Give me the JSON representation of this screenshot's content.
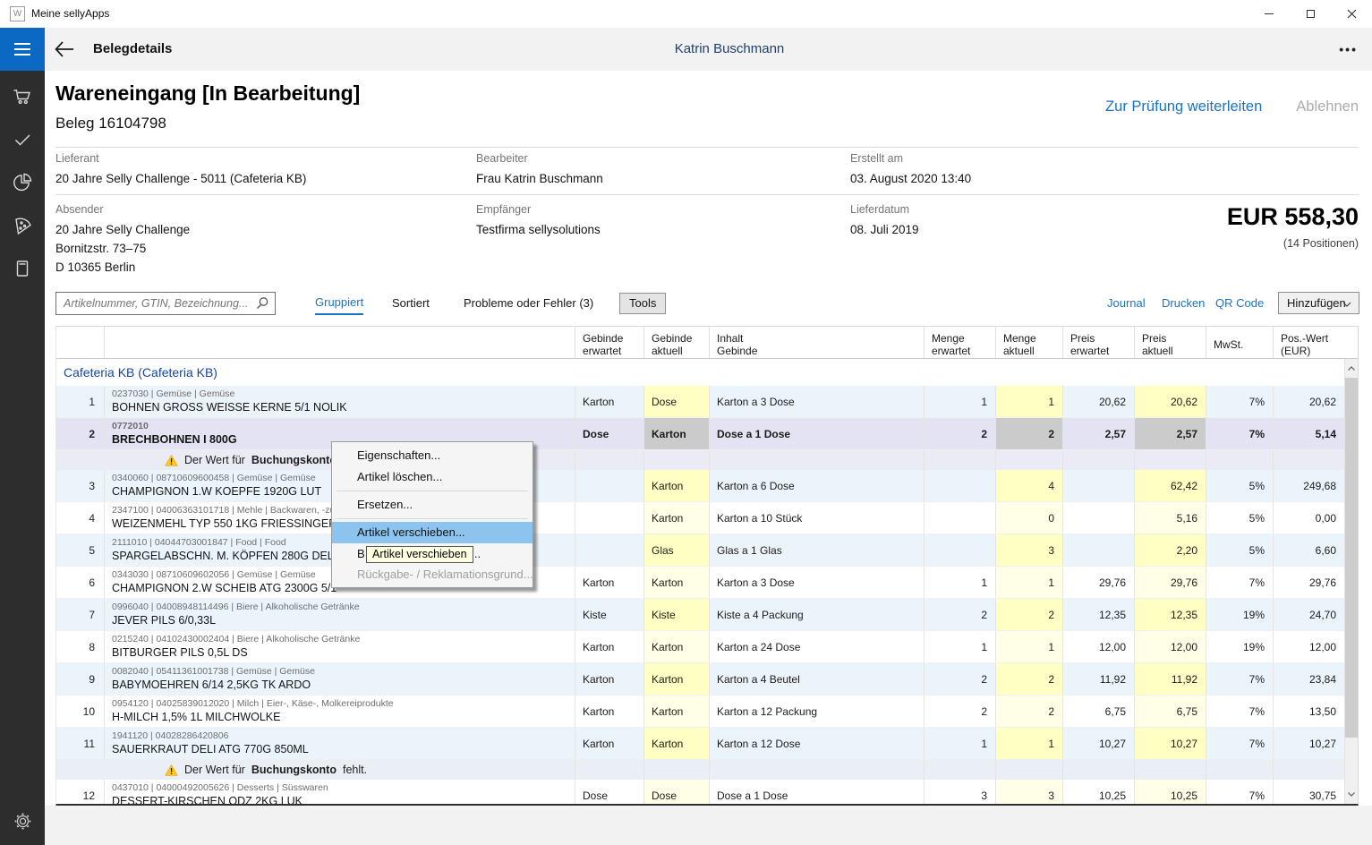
{
  "window": {
    "title": "Meine sellyApps"
  },
  "appbar": {
    "title": "Belegdetails",
    "user": "Katrin Buschmann",
    "more": "•••"
  },
  "sidebar": {
    "icons": [
      "menu",
      "cart",
      "check",
      "pie-chart",
      "pizza",
      "book",
      "settings"
    ]
  },
  "doc": {
    "title": "Wareneingang [In Bearbeitung]",
    "subtitle": "Beleg 16104798",
    "action_forward": "Zur Prüfung weiterleiten",
    "action_reject": "Ablehnen",
    "fields": [
      {
        "label": "Lieferant",
        "value": "20 Jahre Selly Challenge - 5011 (Cafeteria KB)"
      },
      {
        "label": "Bearbeiter",
        "value": "Frau Katrin Buschmann"
      },
      {
        "label": "Erstellt am",
        "value": "03. August 2020 13:40"
      },
      {
        "label": "Absender",
        "value": "20 Jahre Selly Challenge",
        "line2": "Bornitzstr. 73–75",
        "line3": "D 10365 Berlin"
      },
      {
        "label": "Empfänger",
        "value": "Testfirma sellysolutions"
      },
      {
        "label": "Lieferdatum",
        "value": "08. Juli 2019"
      }
    ],
    "total": "EUR 558,30",
    "positions": "(14 Positionen)"
  },
  "toolbar": {
    "search_placeholder": "Artikelnummer, GTIN, Bezeichnung...",
    "grouped": "Gruppiert",
    "sorted": "Sortiert",
    "problems": "Probleme oder Fehler (3)",
    "tools": "Tools",
    "journal": "Journal",
    "print": "Drucken",
    "qr": "QR Code",
    "add": "Hinzufügen"
  },
  "table": {
    "columns": [
      "",
      "",
      "Gebinde\nerwartet",
      "Gebinde\naktuell",
      "Inhalt\nGebinde",
      "Menge\nerwartet",
      "Menge\naktuell",
      "Preis\nerwartet",
      "Preis\naktuell",
      "MwSt.",
      "Pos.-Wert\n(EUR)"
    ],
    "group": "Cafeteria KB (Cafeteria KB)",
    "rows": [
      {
        "type": "item",
        "num": "1",
        "code": "0237030 | Gemüse | Gemüse",
        "name": "BOHNEN GROSS WEISSE KERNE 5/1 NOLIK",
        "ge": "Karton",
        "ga": "Dose",
        "inh": "Karton a 3 Dose",
        "me": "1",
        "ma": "1",
        "pe": "20,62",
        "pa": "20,62",
        "mw": "7%",
        "pw": "20,62",
        "stripe": "blue",
        "hl": "yellow"
      },
      {
        "type": "item",
        "num": "2",
        "code": "0772010",
        "name": "BRECHBOHNEN I 800G",
        "ge": "Dose",
        "ga": "Karton",
        "inh": "Dose a 1 Dose",
        "me": "2",
        "ma": "2",
        "pe": "2,57",
        "pa": "2,57",
        "mw": "7%",
        "pw": "5,14",
        "stripe": "selected",
        "hl": "gray",
        "bold": true
      },
      {
        "type": "warning",
        "pre": "Der Wert für ",
        "bold": "Buchungskonto",
        "post": " fehlt.",
        "bg": "#EBEBF5"
      },
      {
        "type": "item",
        "num": "3",
        "code": "0340060 | 08710609600458 | Gemüse | Gemüse",
        "name": "CHAMPIGNON 1.W KOEPFE 1920G LUT",
        "ge": "",
        "ga": "Karton",
        "inh": "Karton a 6 Dose",
        "me": "",
        "ma": "4",
        "pe": "",
        "pa": "62,42",
        "mw": "5%",
        "pw": "249,68",
        "stripe": "blue",
        "hl": "yellow"
      },
      {
        "type": "item",
        "num": "4",
        "code": "2347100 | 04006363101718 | Mehle | Backwaren, -zutaten",
        "name": "WEIZENMEHL TYP 550 1KG FRIESSINGER",
        "ge": "",
        "ga": "Karton",
        "inh": "Karton a 10 Stück",
        "me": "",
        "ma": "0",
        "pe": "",
        "pa": "5,16",
        "mw": "5%",
        "pw": "0,00",
        "stripe": "white",
        "hl": "pale"
      },
      {
        "type": "item",
        "num": "5",
        "code": "2111010 | 04044703001847 | Food | Food",
        "name": "SPARGELABSCHN. M. KÖPFEN 280G DELTA",
        "ge": "",
        "ga": "Glas",
        "inh": "Glas a 1 Glas",
        "me": "",
        "ma": "3",
        "pe": "",
        "pa": "2,20",
        "mw": "5%",
        "pw": "6,60",
        "stripe": "blue",
        "hl": "yellow"
      },
      {
        "type": "item",
        "num": "6",
        "code": "0343030 | 08710609602056 | Gemüse | Gemüse",
        "name": "CHAMPIGNON 2.W SCHEIB ATG 2300G 5/1",
        "ge": "Karton",
        "ga": "Karton",
        "inh": "Karton a 3 Dose",
        "me": "1",
        "ma": "1",
        "pe": "29,76",
        "pa": "29,76",
        "mw": "7%",
        "pw": "29,76",
        "stripe": "white",
        "hl": "pale"
      },
      {
        "type": "item",
        "num": "7",
        "code": "0996040 | 04008948114496 | Biere | Alkoholische Getränke",
        "name": "JEVER PILS 6/0,33L",
        "ge": "Kiste",
        "ga": "Kiste",
        "inh": "Kiste a 4 Packung",
        "me": "2",
        "ma": "2",
        "pe": "12,35",
        "pa": "12,35",
        "mw": "19%",
        "pw": "24,70",
        "stripe": "blue",
        "hl": "yellow"
      },
      {
        "type": "item",
        "num": "8",
        "code": "0215240 | 04102430002404 | Biere | Alkoholische Getränke",
        "name": "BITBURGER PILS 0,5L DS",
        "ge": "Karton",
        "ga": "Karton",
        "inh": "Karton a 24 Dose",
        "me": "1",
        "ma": "1",
        "pe": "12,00",
        "pa": "12,00",
        "mw": "19%",
        "pw": "12,00",
        "stripe": "white",
        "hl": "pale"
      },
      {
        "type": "item",
        "num": "9",
        "code": "0082040 | 05411361001738 | Gemüse | Gemüse",
        "name": "BABYMOEHREN 6/14 2,5KG TK ARDO",
        "ge": "Karton",
        "ga": "Karton",
        "inh": "Karton a 4 Beutel",
        "me": "2",
        "ma": "2",
        "pe": "11,92",
        "pa": "11,92",
        "mw": "7%",
        "pw": "23,84",
        "stripe": "blue",
        "hl": "yellow"
      },
      {
        "type": "item",
        "num": "10",
        "code": "0954120 | 04025839012020 | Milch | Eier-, Käse-, Molkereiprodukte",
        "name": "H-MILCH 1,5% 1L MILCHWOLKE",
        "ge": "Karton",
        "ga": "Karton",
        "inh": "Karton a 12 Packung",
        "me": "2",
        "ma": "2",
        "pe": "6,75",
        "pa": "6,75",
        "mw": "7%",
        "pw": "13,50",
        "stripe": "white",
        "hl": "pale"
      },
      {
        "type": "item",
        "num": "11",
        "code": "1941120 | 04028286420806",
        "name": "SAUERKRAUT DELI ATG 770G 850ML",
        "ge": "Karton",
        "ga": "Karton",
        "inh": "Karton a 12 Dose",
        "me": "1",
        "ma": "1",
        "pe": "10,27",
        "pa": "10,27",
        "mw": "7%",
        "pw": "10,27",
        "stripe": "blue",
        "hl": "yellow"
      },
      {
        "type": "warning",
        "pre": "Der Wert für ",
        "bold": "Buchungskonto",
        "post": " fehlt.",
        "bg": "#EAEFF6"
      },
      {
        "type": "item",
        "num": "12",
        "code": "0437010 | 04000492005626 | Desserts | Süsswaren",
        "name": "DESSERT-KIRSCHEN ODZ 2KG LUK",
        "ge": "Dose",
        "ga": "Dose",
        "inh": "Dose a 1 Dose",
        "me": "3",
        "ma": "3",
        "pe": "10,25",
        "pa": "10,25",
        "mw": "7%",
        "pw": "30,75",
        "stripe": "white",
        "hl": "pale"
      }
    ]
  },
  "context_menu": {
    "items": [
      {
        "type": "item",
        "label": "Eigenschaften..."
      },
      {
        "type": "item",
        "label": "Artikel löschen..."
      },
      {
        "type": "sep"
      },
      {
        "type": "item",
        "label": "Ersetzen..."
      },
      {
        "type": "sep"
      },
      {
        "type": "item",
        "label": "Artikel verschieben...",
        "state": "highlight"
      },
      {
        "type": "item",
        "prefix": "B",
        "suffix": "n...",
        "state": "obscured"
      },
      {
        "type": "item",
        "label": "Rückgabe- / Reklamationsgrund...",
        "state": "disabled"
      }
    ],
    "tooltip": "Artikel verschieben"
  },
  "colors": {
    "accent_blue": "#0C69C3",
    "link_blue": "#1B72C4",
    "user_navy": "#1E3F72",
    "group_blue": "#1746A3",
    "row_stripe": "#EBF4FB",
    "row_selected": "#E3E3F3",
    "highlight_yellow": "#FFFEC3",
    "highlight_pale_yellow": "#FFFEE7",
    "highlight_gray": "#CBCBCB",
    "menu_highlight": "#8CC4EF",
    "tooltip_bg": "#FFFFE1",
    "warning_yellow": "#FFC81E"
  }
}
